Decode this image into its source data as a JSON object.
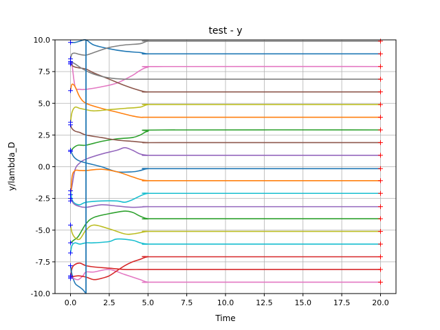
{
  "chart_data": {
    "type": "line",
    "title": "test - y",
    "xlabel": "Time",
    "ylabel": "y/lambda_D",
    "xlim": [
      -1,
      21
    ],
    "ylim": [
      -10,
      10
    ],
    "xticks": [
      "0.0",
      "2.5",
      "5.0",
      "7.5",
      "10.0",
      "12.5",
      "15.0",
      "17.5",
      "20.0"
    ],
    "xtick_values": [
      0,
      2.5,
      5,
      7.5,
      10,
      12.5,
      15,
      17.5,
      20
    ],
    "yticks": [
      "10.0",
      "7.5",
      "5.0",
      "2.5",
      "0.0",
      "-2.5",
      "-5.0",
      "-7.5",
      "-10.0"
    ],
    "ytick_values": [
      10,
      7.5,
      5,
      2.5,
      0,
      -2.5,
      -5,
      -7.5,
      -10
    ],
    "grid": true,
    "vline": {
      "x": 1.0,
      "color": "#1f77b4"
    },
    "start_marker_color": "#0000ff",
    "end_marker_color": "#ff0000",
    "series": [
      {
        "color": "#1f77b4",
        "x": [
          0,
          0.3,
          0.6,
          1.0,
          1.5,
          2.5,
          3.5,
          4.5,
          5.0,
          6,
          20
        ],
        "y": [
          9.8,
          9.8,
          9.9,
          10.0,
          9.6,
          9.3,
          9.1,
          9.0,
          8.9,
          8.9,
          8.9
        ]
      },
      {
        "color": "#7f7f7f",
        "x": [
          0,
          0.1,
          0.3,
          0.6,
          1.0,
          1.5,
          2.5,
          3.5,
          4.5,
          5.0,
          6,
          20
        ],
        "y": [
          8.5,
          8.9,
          8.95,
          8.85,
          8.8,
          9.0,
          9.4,
          9.6,
          9.7,
          9.9,
          9.9,
          9.9
        ]
      },
      {
        "color": "#e377c2",
        "x": [
          0,
          0.1,
          0.3,
          0.6,
          1.0,
          2.0,
          3.0,
          4.0,
          4.5,
          5.0,
          6,
          20
        ],
        "y": [
          8.2,
          8.0,
          6.3,
          6.1,
          6.1,
          6.3,
          6.6,
          7.2,
          7.6,
          7.85,
          7.9,
          7.9
        ]
      },
      {
        "color": "#8c564b",
        "x": [
          0,
          0.2,
          0.5,
          1.0,
          1.5,
          2.5,
          3.5,
          4.5,
          5.0,
          6,
          20
        ],
        "y": [
          8.1,
          7.9,
          7.8,
          7.7,
          7.4,
          6.9,
          6.4,
          6.0,
          5.9,
          5.9,
          5.9
        ]
      },
      {
        "color": "#7f7f7f",
        "x": [
          0,
          0.3,
          0.8,
          1.5,
          2.5,
          3.5,
          4.5,
          5.0,
          6,
          20
        ],
        "y": [
          8.3,
          8.1,
          7.7,
          7.3,
          7.0,
          6.9,
          6.9,
          6.9,
          6.9,
          6.9
        ]
      },
      {
        "color": "#ff7f0e",
        "x": [
          0,
          0.1,
          0.3,
          0.6,
          1.0,
          2.0,
          3.0,
          4.0,
          4.5,
          5.0,
          6,
          20
        ],
        "y": [
          6.0,
          6.5,
          6.3,
          5.5,
          5.0,
          4.6,
          4.3,
          4.0,
          3.9,
          3.9,
          3.9,
          3.9
        ]
      },
      {
        "color": "#bcbd22",
        "x": [
          0,
          0.1,
          0.3,
          0.6,
          1.0,
          1.5,
          2.5,
          3.5,
          4.5,
          5.0,
          6,
          20
        ],
        "y": [
          3.5,
          4.3,
          4.7,
          4.6,
          4.5,
          4.4,
          4.5,
          4.6,
          4.7,
          4.9,
          4.9,
          4.9
        ]
      },
      {
        "color": "#2ca02c",
        "x": [
          0,
          0.2,
          0.5,
          1.0,
          2.0,
          3.0,
          4.0,
          4.5,
          5.0,
          6,
          20
        ],
        "y": [
          1.2,
          1.5,
          1.7,
          1.7,
          2.0,
          2.2,
          2.3,
          2.5,
          2.8,
          2.9,
          2.9
        ]
      },
      {
        "color": "#8c564b",
        "x": [
          0,
          0.1,
          0.3,
          0.6,
          1.0,
          2.0,
          3.0,
          4.0,
          5.0,
          6,
          20
        ],
        "y": [
          3.3,
          3.0,
          2.8,
          2.7,
          2.5,
          2.3,
          2.1,
          2.0,
          1.9,
          1.9,
          1.9
        ]
      },
      {
        "color": "#9467bd",
        "x": [
          0,
          0.1,
          0.3,
          0.6,
          1.0,
          2.0,
          3.0,
          3.5,
          4.0,
          4.5,
          5.0,
          6,
          20
        ],
        "y": [
          -2.2,
          -1.5,
          -0.2,
          0.3,
          0.6,
          1.0,
          1.3,
          1.5,
          1.3,
          1.0,
          0.9,
          0.9,
          0.9
        ]
      },
      {
        "color": "#1f77b4",
        "x": [
          0,
          0.2,
          0.5,
          1.0,
          2.0,
          3.0,
          4.0,
          4.5,
          5.0,
          6,
          20
        ],
        "y": [
          1.3,
          0.8,
          0.5,
          0.3,
          0.0,
          -0.4,
          -0.4,
          -0.3,
          -0.15,
          -0.15,
          -0.15
        ]
      },
      {
        "color": "#ff7f0e",
        "x": [
          0,
          0.1,
          0.3,
          0.6,
          1.0,
          2.0,
          3.0,
          4.0,
          4.5,
          5.0,
          6,
          20
        ],
        "y": [
          -2.7,
          -0.8,
          -0.3,
          -0.3,
          -0.3,
          -0.2,
          -0.4,
          -0.8,
          -1.0,
          -1.1,
          -1.1,
          -1.1
        ]
      },
      {
        "color": "#17becf",
        "x": [
          0,
          0.1,
          0.3,
          0.6,
          1.0,
          2.0,
          3.0,
          3.5,
          4.0,
          4.5,
          5.0,
          6,
          20
        ],
        "y": [
          -1.9,
          -2.6,
          -2.9,
          -3.0,
          -2.8,
          -2.7,
          -2.7,
          -2.8,
          -2.6,
          -2.3,
          -2.1,
          -2.1,
          -2.1
        ]
      },
      {
        "color": "#9467bd",
        "x": [
          0,
          0.2,
          0.5,
          1.0,
          2.0,
          3.0,
          4.0,
          5.0,
          6,
          20
        ],
        "y": [
          -2.5,
          -2.9,
          -3.1,
          -3.2,
          -3.0,
          -3.1,
          -3.2,
          -3.15,
          -3.15,
          -3.15
        ]
      },
      {
        "color": "#2ca02c",
        "x": [
          0,
          0.2,
          0.5,
          1.0,
          1.5,
          2.5,
          3.5,
          4.0,
          4.5,
          5.0,
          6,
          20
        ],
        "y": [
          -6.0,
          -5.8,
          -5.5,
          -4.5,
          -4.0,
          -3.7,
          -3.5,
          -3.6,
          -3.9,
          -4.1,
          -4.1,
          -4.1
        ]
      },
      {
        "color": "#bcbd22",
        "x": [
          0,
          0.1,
          0.3,
          0.6,
          1.0,
          1.5,
          2.5,
          3.5,
          4.0,
          4.5,
          5.0,
          6,
          20
        ],
        "y": [
          -4.6,
          -5.2,
          -5.6,
          -5.7,
          -5.0,
          -4.6,
          -4.9,
          -5.3,
          -5.3,
          -5.2,
          -5.1,
          -5.1,
          -5.1
        ]
      },
      {
        "color": "#17becf",
        "x": [
          0,
          0.1,
          0.3,
          0.6,
          1.0,
          1.5,
          2.5,
          3.0,
          4.0,
          4.5,
          5.0,
          6,
          20
        ],
        "y": [
          -6.8,
          -6.2,
          -6.0,
          -6.1,
          -6.0,
          -6.0,
          -5.9,
          -5.7,
          -5.8,
          -6.0,
          -6.1,
          -6.1,
          -6.1
        ]
      },
      {
        "color": "#d62728",
        "x": [
          0,
          0.1,
          0.3,
          0.6,
          1.0,
          1.5,
          2.5,
          3.5,
          4.5,
          5.0,
          6,
          20
        ],
        "y": [
          -8.8,
          -8.0,
          -7.7,
          -7.6,
          -7.8,
          -7.9,
          -8.0,
          -8.1,
          -8.1,
          -8.1,
          -8.1,
          -8.1
        ]
      },
      {
        "color": "#1f77b4",
        "x": [
          0,
          0.1,
          0.3,
          0.6,
          0.8,
          1.0
        ],
        "y": [
          -7.8,
          -8.5,
          -9.2,
          -9.5,
          -9.7,
          -10.0
        ]
      },
      {
        "color": "#e377c2",
        "x": [
          0,
          0.2,
          0.5,
          0.8,
          1.0,
          1.5,
          2.5,
          3.5,
          4.5,
          5.0,
          6,
          20
        ],
        "y": [
          -8.6,
          -8.8,
          -8.9,
          -8.6,
          -8.3,
          -8.3,
          -8.1,
          -8.5,
          -8.9,
          -9.1,
          -9.1,
          -9.1
        ]
      },
      {
        "color": "#d62728",
        "x": [
          0,
          0.5,
          1.0,
          1.5,
          2.0,
          2.5,
          3.0,
          3.5,
          4.0,
          4.5,
          5.0,
          6,
          20
        ],
        "y": [
          -8.7,
          -8.6,
          -8.7,
          -8.9,
          -8.8,
          -8.6,
          -8.2,
          -7.8,
          -7.5,
          -7.3,
          -7.1,
          -7.1,
          -7.1
        ]
      }
    ]
  }
}
